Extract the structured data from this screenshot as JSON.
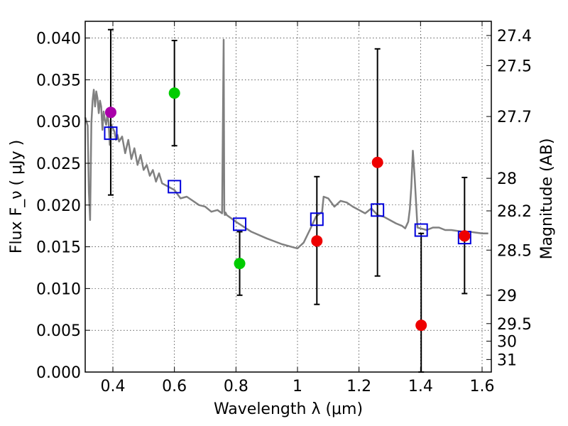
{
  "chart_data": {
    "type": "scatter",
    "xlabel": "Wavelength  λ (μm)",
    "ylabel": "Flux  F_ν  ( μJy )",
    "ylabel_right": "Magnitude (AB)",
    "xlim": [
      0.31,
      1.63
    ],
    "ylim": [
      0.0,
      0.042
    ],
    "grid": true,
    "x_ticks": [
      {
        "value": 0.4,
        "label": "0.4"
      },
      {
        "value": 0.6,
        "label": "0.6"
      },
      {
        "value": 0.8,
        "label": "0.8"
      },
      {
        "value": 1.0,
        "label": "1"
      },
      {
        "value": 1.2,
        "label": "1.2"
      },
      {
        "value": 1.4,
        "label": "1.4"
      },
      {
        "value": 1.6,
        "label": "1.6"
      }
    ],
    "y_ticks": [
      {
        "value": 0.0,
        "label": "0.000"
      },
      {
        "value": 0.005,
        "label": "0.005"
      },
      {
        "value": 0.01,
        "label": "0.010"
      },
      {
        "value": 0.015,
        "label": "0.015"
      },
      {
        "value": 0.02,
        "label": "0.020"
      },
      {
        "value": 0.025,
        "label": "0.025"
      },
      {
        "value": 0.03,
        "label": "0.030"
      },
      {
        "value": 0.035,
        "label": "0.035"
      },
      {
        "value": 0.04,
        "label": "0.040"
      }
    ],
    "right_ticks": [
      {
        "label": "27.4",
        "flux": 0.0403
      },
      {
        "label": "27.5",
        "flux": 0.0367
      },
      {
        "label": "27.7",
        "flux": 0.0306
      },
      {
        "label": "28",
        "flux": 0.0232
      },
      {
        "label": "28.2",
        "flux": 0.0193
      },
      {
        "label": "28.5",
        "flux": 0.0146
      },
      {
        "label": "29",
        "flux": 0.0092
      },
      {
        "label": "29.5",
        "flux": 0.0058
      },
      {
        "label": "30",
        "flux": 0.0037
      },
      {
        "label": "31",
        "flux": 0.0015
      }
    ],
    "template_spectrum": {
      "name": "model SED",
      "color": "#808080",
      "x": [
        0.31,
        0.318,
        0.322,
        0.326,
        0.33,
        0.334,
        0.338,
        0.342,
        0.346,
        0.35,
        0.354,
        0.358,
        0.362,
        0.366,
        0.37,
        0.374,
        0.378,
        0.382,
        0.386,
        0.39,
        0.395,
        0.4,
        0.405,
        0.41,
        0.415,
        0.42,
        0.43,
        0.44,
        0.45,
        0.46,
        0.47,
        0.48,
        0.49,
        0.5,
        0.51,
        0.52,
        0.53,
        0.54,
        0.55,
        0.56,
        0.58,
        0.6,
        0.62,
        0.64,
        0.66,
        0.68,
        0.7,
        0.72,
        0.74,
        0.755,
        0.76,
        0.762,
        0.764,
        0.766,
        0.77,
        0.8,
        0.85,
        0.9,
        0.95,
        0.98,
        1.0,
        1.02,
        1.04,
        1.06,
        1.08,
        1.085,
        1.1,
        1.12,
        1.14,
        1.16,
        1.18,
        1.2,
        1.22,
        1.24,
        1.26,
        1.28,
        1.3,
        1.32,
        1.34,
        1.35,
        1.36,
        1.365,
        1.37,
        1.375,
        1.38,
        1.39,
        1.42,
        1.44,
        1.46,
        1.48,
        1.5,
        1.52,
        1.54,
        1.56,
        1.58,
        1.6,
        1.62
      ],
      "y": [
        0.0305,
        0.0295,
        0.0215,
        0.0182,
        0.0298,
        0.0325,
        0.0338,
        0.0318,
        0.0336,
        0.0328,
        0.031,
        0.0325,
        0.0318,
        0.029,
        0.0312,
        0.0302,
        0.0296,
        0.0308,
        0.03,
        0.0272,
        0.0296,
        0.0292,
        0.0288,
        0.0278,
        0.0284,
        0.0276,
        0.0282,
        0.0262,
        0.0278,
        0.0255,
        0.0268,
        0.0248,
        0.026,
        0.0242,
        0.0248,
        0.0235,
        0.0242,
        0.0228,
        0.0238,
        0.0226,
        0.0222,
        0.0218,
        0.0208,
        0.021,
        0.0205,
        0.02,
        0.0198,
        0.0192,
        0.0194,
        0.019,
        0.0398,
        0.0192,
        0.0188,
        0.0191,
        0.0188,
        0.018,
        0.0168,
        0.016,
        0.0153,
        0.015,
        0.0148,
        0.0155,
        0.017,
        0.0186,
        0.0192,
        0.021,
        0.0208,
        0.0198,
        0.0205,
        0.0203,
        0.0198,
        0.0194,
        0.019,
        0.0196,
        0.0188,
        0.0186,
        0.0182,
        0.0178,
        0.0175,
        0.0172,
        0.018,
        0.0195,
        0.0222,
        0.0265,
        0.0238,
        0.0173,
        0.017,
        0.0173,
        0.0173,
        0.017,
        0.017,
        0.0169,
        0.0168,
        0.0168,
        0.0167,
        0.0166,
        0.0166
      ]
    },
    "series": [
      {
        "name": "model photometry",
        "marker": "open-square",
        "color": "#0000dd",
        "points": [
          {
            "x": 0.393,
            "y": 0.0286
          },
          {
            "x": 0.6,
            "y": 0.0222
          },
          {
            "x": 0.812,
            "y": 0.0177
          },
          {
            "x": 1.063,
            "y": 0.0183
          },
          {
            "x": 1.26,
            "y": 0.0194
          },
          {
            "x": 1.402,
            "y": 0.017
          },
          {
            "x": 1.543,
            "y": 0.0161
          }
        ]
      },
      {
        "name": "observed (magenta)",
        "marker": "circle",
        "color": "#aa00aa",
        "points": [
          {
            "x": 0.393,
            "y": 0.0311,
            "err_low": 0.0212,
            "err_high": 0.041
          }
        ]
      },
      {
        "name": "observed (green)",
        "marker": "circle",
        "color": "#00cc00",
        "points": [
          {
            "x": 0.6,
            "y": 0.0334,
            "err_low": 0.0271,
            "err_high": 0.0397
          },
          {
            "x": 0.812,
            "y": 0.013,
            "err_low": 0.0092,
            "err_high": 0.0168
          }
        ]
      },
      {
        "name": "observed (red)",
        "marker": "circle",
        "color": "#ee0000",
        "points": [
          {
            "x": 1.063,
            "y": 0.0157,
            "err_low": 0.0081,
            "err_high": 0.0234
          },
          {
            "x": 1.26,
            "y": 0.0251,
            "err_low": 0.0115,
            "err_high": 0.0387
          },
          {
            "x": 1.402,
            "y": 0.0056,
            "err_low": 0.0,
            "err_high": 0.0166
          },
          {
            "x": 1.543,
            "y": 0.0163,
            "err_low": 0.0094,
            "err_high": 0.0233
          }
        ]
      }
    ]
  }
}
